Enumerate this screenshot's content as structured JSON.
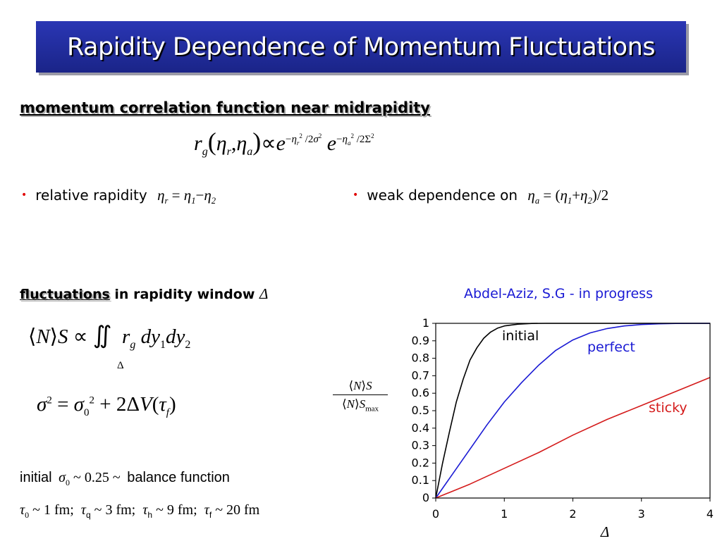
{
  "title": "Rapidity Dependence of Momentum Fluctuations",
  "section1": {
    "heading": "momentum correlation function near midrapidity",
    "bullet_left": {
      "text": "relative rapidity"
    },
    "bullet_right": {
      "text": "weak dependence on"
    }
  },
  "section2": {
    "heading_underlined": "fluctuations",
    "heading_rest": "in rapidity window",
    "attribution": "Abdel-Aziz, S.G - in progress",
    "initial_prefix": "initial",
    "initial_suffix": "balance function"
  },
  "colors": {
    "banner": "#1f2a9a",
    "initial": "#000000",
    "perfect": "#1a1ad4",
    "sticky": "#d41a1a",
    "attribution": "#1a1ad4"
  },
  "chart_data": {
    "type": "line",
    "xlabel": "Δ",
    "ylabel": "⟨N⟩S / ⟨N⟩S_max",
    "xlim": [
      0,
      4
    ],
    "ylim": [
      0,
      1
    ],
    "xticks": [
      "0",
      "1",
      "2",
      "3",
      "4"
    ],
    "yticks": [
      "0",
      "0.1",
      "0.2",
      "0.3",
      "0.4",
      "0.5",
      "0.6",
      "0.7",
      "0.8",
      "0.9",
      "1"
    ],
    "grid": false,
    "series": [
      {
        "name": "initial",
        "color": "#000000",
        "x": [
          0,
          0.1,
          0.2,
          0.3,
          0.4,
          0.5,
          0.6,
          0.7,
          0.8,
          0.9,
          1.0,
          1.2,
          1.4,
          1.6,
          1.8,
          2.0,
          2.5,
          3.0,
          3.5,
          4.0
        ],
        "y": [
          0,
          0.2,
          0.38,
          0.55,
          0.68,
          0.79,
          0.86,
          0.915,
          0.95,
          0.972,
          0.985,
          0.995,
          0.999,
          1.0,
          1.0,
          1.0,
          1.0,
          1.0,
          1.0,
          1.0
        ]
      },
      {
        "name": "perfect",
        "color": "#1a1ad4",
        "x": [
          0,
          0.25,
          0.5,
          0.75,
          1.0,
          1.25,
          1.5,
          1.75,
          2.0,
          2.25,
          2.5,
          2.75,
          3.0,
          3.25,
          3.5,
          3.75,
          4.0
        ],
        "y": [
          0,
          0.14,
          0.28,
          0.42,
          0.55,
          0.66,
          0.76,
          0.845,
          0.905,
          0.945,
          0.97,
          0.985,
          0.993,
          0.997,
          0.999,
          1.0,
          1.0
        ]
      },
      {
        "name": "sticky",
        "color": "#d41a1a",
        "x": [
          0,
          0.5,
          1.0,
          1.5,
          2.0,
          2.5,
          3.0,
          3.5,
          4.0
        ],
        "y": [
          0,
          0.08,
          0.17,
          0.26,
          0.36,
          0.45,
          0.53,
          0.61,
          0.69
        ]
      }
    ]
  }
}
